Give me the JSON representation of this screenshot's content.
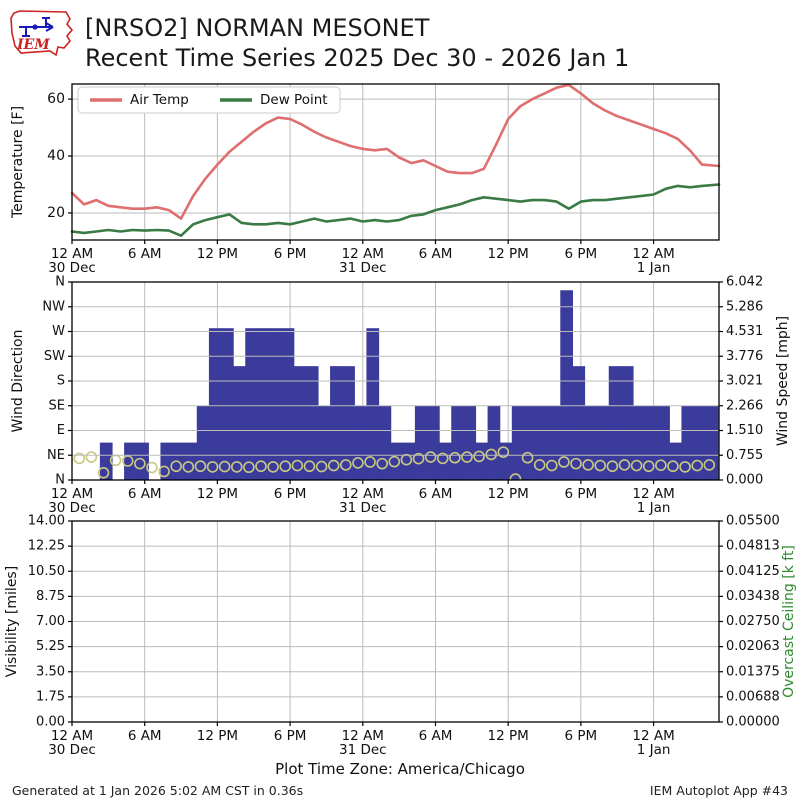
{
  "header": {
    "logo_text": "IEM",
    "title_line1": "[NRSO2] NORMAN MESONET",
    "title_line2": "Recent Time Series 2025 Dec 30 - 2026 Jan 1"
  },
  "footer": {
    "timezone": "Plot Time Zone: America/Chicago",
    "generated": "Generated at 1 Jan 2026 5:02 AM CST in 0.36s",
    "app": "IEM Autoplot App #43"
  },
  "colors": {
    "air_temp": "#df6e6e",
    "dew_point": "#3a7a44",
    "wind_bar": "#3b3b9c",
    "wind_speed_marker": "#c9c883",
    "ceiling_label": "#2e8b2e",
    "grid": "#bbbbbb",
    "axis": "#000000",
    "logo_red": "#cc2222",
    "logo_blue": "#1a1ab8"
  },
  "x_axis": {
    "hour_ticks": [
      0,
      6,
      12,
      18,
      24,
      30,
      36,
      42,
      48
    ],
    "hour_labels": [
      "12 AM",
      "6 AM",
      "12 PM",
      "6 PM",
      "12 AM",
      "6 AM",
      "12 PM",
      "6 PM",
      "12 AM"
    ],
    "date_ticks": [
      0,
      24,
      48
    ],
    "date_labels": [
      "30 Dec",
      "31 Dec",
      "1 Jan"
    ],
    "xlim": [
      0,
      53.4
    ]
  },
  "chart_data": [
    {
      "type": "line",
      "id": "temperature",
      "ylabel": "Temperature [F]",
      "ytick_labels": [
        "20",
        "40",
        "60"
      ],
      "ytick_values": [
        20,
        40,
        60
      ],
      "ylim": [
        10.5,
        65.3
      ],
      "x_start": "2025-12-30 12 AM",
      "x_step_hours": 1,
      "legend": [
        "Air Temp",
        "Dew Point"
      ],
      "series": [
        {
          "name": "Air Temp",
          "color": "#df6e6e",
          "values": [
            27,
            23,
            24.5,
            22.5,
            22,
            21.5,
            21.5,
            22,
            21,
            18,
            26,
            32,
            37,
            41.5,
            45,
            48.5,
            51.5,
            53.5,
            53,
            51,
            48.5,
            46.5,
            45,
            43.5,
            42.5,
            42,
            42.5,
            39.5,
            37.5,
            38.5,
            36.5,
            34.5,
            34,
            34,
            35.5,
            44,
            53,
            57.5,
            60,
            62,
            64,
            65,
            62,
            58.5,
            56,
            54,
            52.5,
            51,
            49.5,
            48,
            46,
            42,
            37,
            36.5
          ]
        },
        {
          "name": "Dew Point",
          "color": "#3a7a44",
          "values": [
            13.5,
            13,
            13.5,
            14,
            13.5,
            14,
            13.8,
            14,
            13.8,
            12,
            16,
            17.5,
            18.5,
            19.5,
            16.5,
            16,
            16,
            16.5,
            16,
            17,
            18,
            17,
            17.5,
            18,
            17,
            17.5,
            17,
            17.5,
            19,
            19.5,
            21,
            22,
            23,
            24.5,
            25.5,
            25,
            24.5,
            24,
            24.5,
            24.5,
            24,
            21.5,
            24,
            24.5,
            24.5,
            25,
            25.5,
            26,
            26.5,
            28.5,
            29.5,
            29,
            29.5,
            30
          ]
        }
      ]
    },
    {
      "type": "bar",
      "id": "wind",
      "ylabel_left": "Wind Direction",
      "yticks_left": [
        "N",
        "NE",
        "E",
        "SE",
        "S",
        "SW",
        "W",
        "NW",
        "N"
      ],
      "ylim_left_deg": [
        0,
        360
      ],
      "ylabel_right": "Wind Speed [mph]",
      "yticks_right": [
        "0.000",
        "0.755",
        "1.510",
        "2.266",
        "3.021",
        "3.776",
        "4.531",
        "5.286",
        "6.042"
      ],
      "ylim_right": [
        0,
        6.042
      ],
      "direction_deg": [
        null,
        null,
        68,
        null,
        68,
        68,
        null,
        68,
        68,
        68,
        135,
        276,
        276,
        207,
        276,
        276,
        276,
        276,
        207,
        207,
        135,
        207,
        207,
        135,
        276,
        135,
        68,
        68,
        135,
        135,
        68,
        135,
        135,
        68,
        135,
        68,
        135,
        135,
        135,
        135,
        345,
        207,
        135,
        135,
        207,
        207,
        135,
        135,
        135,
        68,
        135,
        135,
        135,
        null
      ],
      "speed_mph": [
        0.62,
        0.66,
        0.7,
        0.22,
        0.6,
        0.58,
        0.5,
        0.38,
        0.26,
        0.42,
        0.4,
        0.42,
        0.4,
        0.41,
        0.4,
        0.39,
        0.42,
        0.4,
        0.42,
        0.44,
        0.42,
        0.41,
        0.44,
        0.46,
        0.52,
        0.55,
        0.5,
        0.56,
        0.62,
        0.65,
        0.7,
        0.66,
        0.68,
        0.7,
        0.72,
        0.78,
        0.85,
        0.03,
        0.68,
        0.46,
        0.44,
        0.55,
        0.5,
        0.46,
        0.44,
        0.42,
        0.46,
        0.44,
        0.42,
        0.45,
        0.42,
        0.4,
        0.44,
        0.46
      ]
    },
    {
      "type": "empty",
      "id": "visibility",
      "ylabel_left": "Visibility [miles]",
      "yticks_left": [
        "0.00",
        "1.75",
        "3.50",
        "5.25",
        "7.00",
        "8.75",
        "10.50",
        "12.25",
        "14.00"
      ],
      "ylim_left": [
        0,
        14
      ],
      "ylabel_right": "Overcast Ceiling [k ft]",
      "yticks_right": [
        "0.00000",
        "0.00688",
        "0.01375",
        "0.02063",
        "0.02750",
        "0.03438",
        "0.04125",
        "0.04813",
        "0.05500"
      ],
      "ylim_right": [
        0,
        0.055
      ]
    }
  ]
}
